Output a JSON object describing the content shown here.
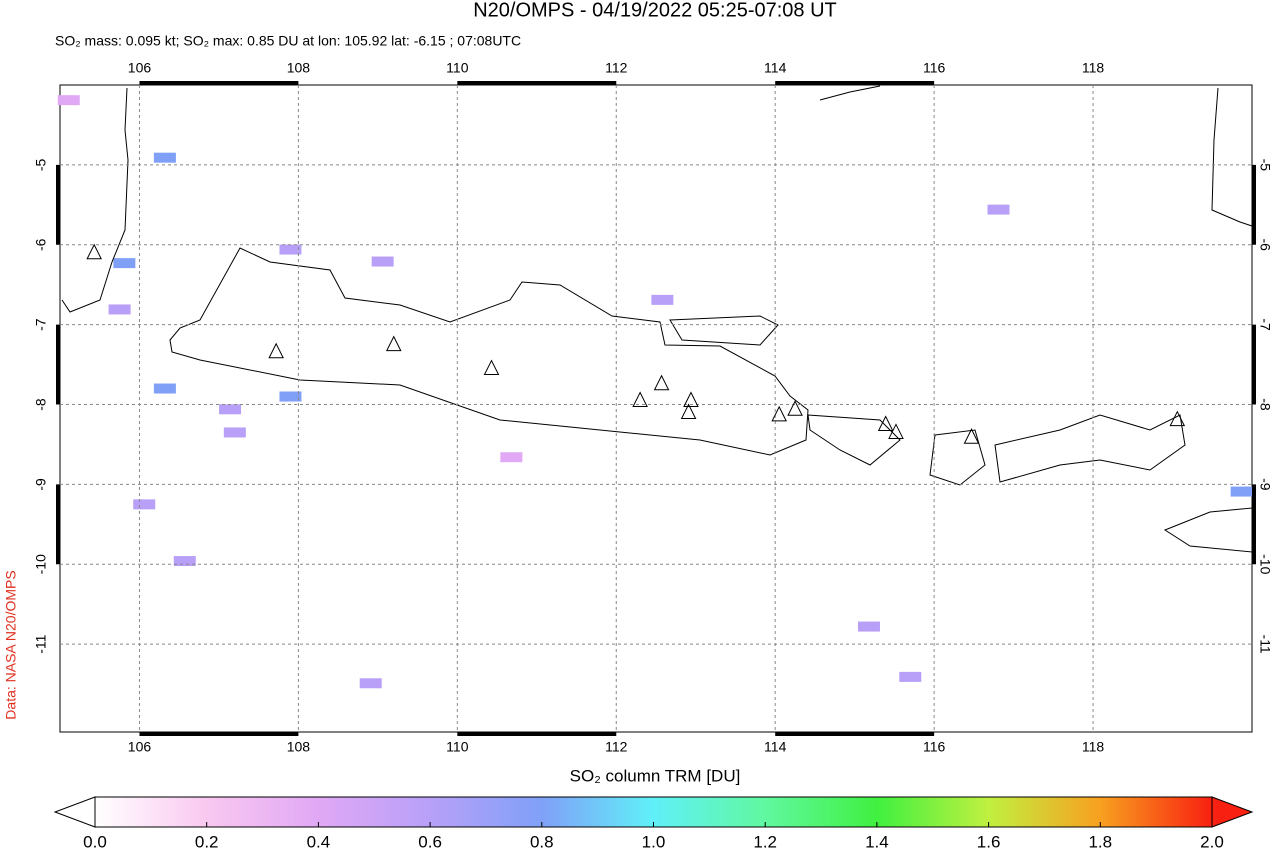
{
  "chart_data": {
    "type": "map",
    "title": "N20/OMPS - 04/19/2022 05:25-07:08 UT",
    "subtitle": "SO₂ mass: 0.095 kt; SO₂ max: 0.85 DU at lon: 105.92 lat: -6.15 ; 07:08UTC",
    "side_note": "Data: NASA N20/OMPS",
    "xlim": [
      105,
      120
    ],
    "ylim": [
      -12.1,
      -4
    ],
    "xticks": [
      106,
      108,
      110,
      112,
      114,
      116,
      118
    ],
    "yticks": [
      -5,
      -6,
      -7,
      -8,
      -9,
      -10,
      -11
    ],
    "grid": true,
    "volcanoes": {
      "lon": [
        105.43,
        107.72,
        109.2,
        110.43,
        112.3,
        112.57,
        112.94,
        112.91,
        114.05,
        114.25,
        115.39,
        115.52,
        116.47,
        119.06
      ],
      "lat": [
        -6.1,
        -7.34,
        -7.25,
        -7.55,
        -7.95,
        -7.74,
        -7.95,
        -8.1,
        -8.13,
        -8.06,
        -8.25,
        -8.35,
        -8.41,
        -8.19
      ]
    },
    "so2_cells": {
      "lon": [
        106.32,
        105.81,
        109.06,
        107.9,
        106.32,
        107.2,
        107.14,
        107.9,
        108.91,
        115.7,
        116.81,
        119.87,
        112.58,
        115.18,
        106.57,
        106.06,
        110.68,
        105.75,
        105.11
      ],
      "lat": [
        -4.91,
        -6.23,
        -6.21,
        -7.9,
        -7.8,
        -8.35,
        -8.06,
        -6.06,
        -11.49,
        -11.41,
        -5.56,
        -9.09,
        -6.69,
        -10.78,
        -9.96,
        -9.25,
        -8.66,
        -6.81,
        -4.19
      ],
      "values": [
        0.75,
        0.85,
        0.65,
        0.7,
        0.7,
        0.6,
        0.55,
        0.55,
        0.5,
        0.65,
        0.6,
        0.8,
        0.5,
        0.55,
        0.5,
        0.5,
        0.45,
        0.55,
        0.45
      ]
    },
    "colorbar": {
      "label": "SO₂ column TRM [DU]",
      "lim": [
        0,
        2
      ],
      "ticks": [
        {
          "value": 0,
          "label": "0.0"
        },
        {
          "value": 0.2,
          "label": "0.2"
        },
        {
          "value": 0.4,
          "label": "0.4"
        },
        {
          "value": 0.6,
          "label": "0.6"
        },
        {
          "value": 0.8,
          "label": "0.8"
        },
        {
          "value": 1,
          "label": "1.0"
        },
        {
          "value": 1.2,
          "label": "1.2"
        },
        {
          "value": 1.4,
          "label": "1.4"
        },
        {
          "value": 1.6,
          "label": "1.6"
        },
        {
          "value": 1.8,
          "label": "1.8"
        },
        {
          "value": 2,
          "label": "2.0"
        }
      ]
    }
  }
}
